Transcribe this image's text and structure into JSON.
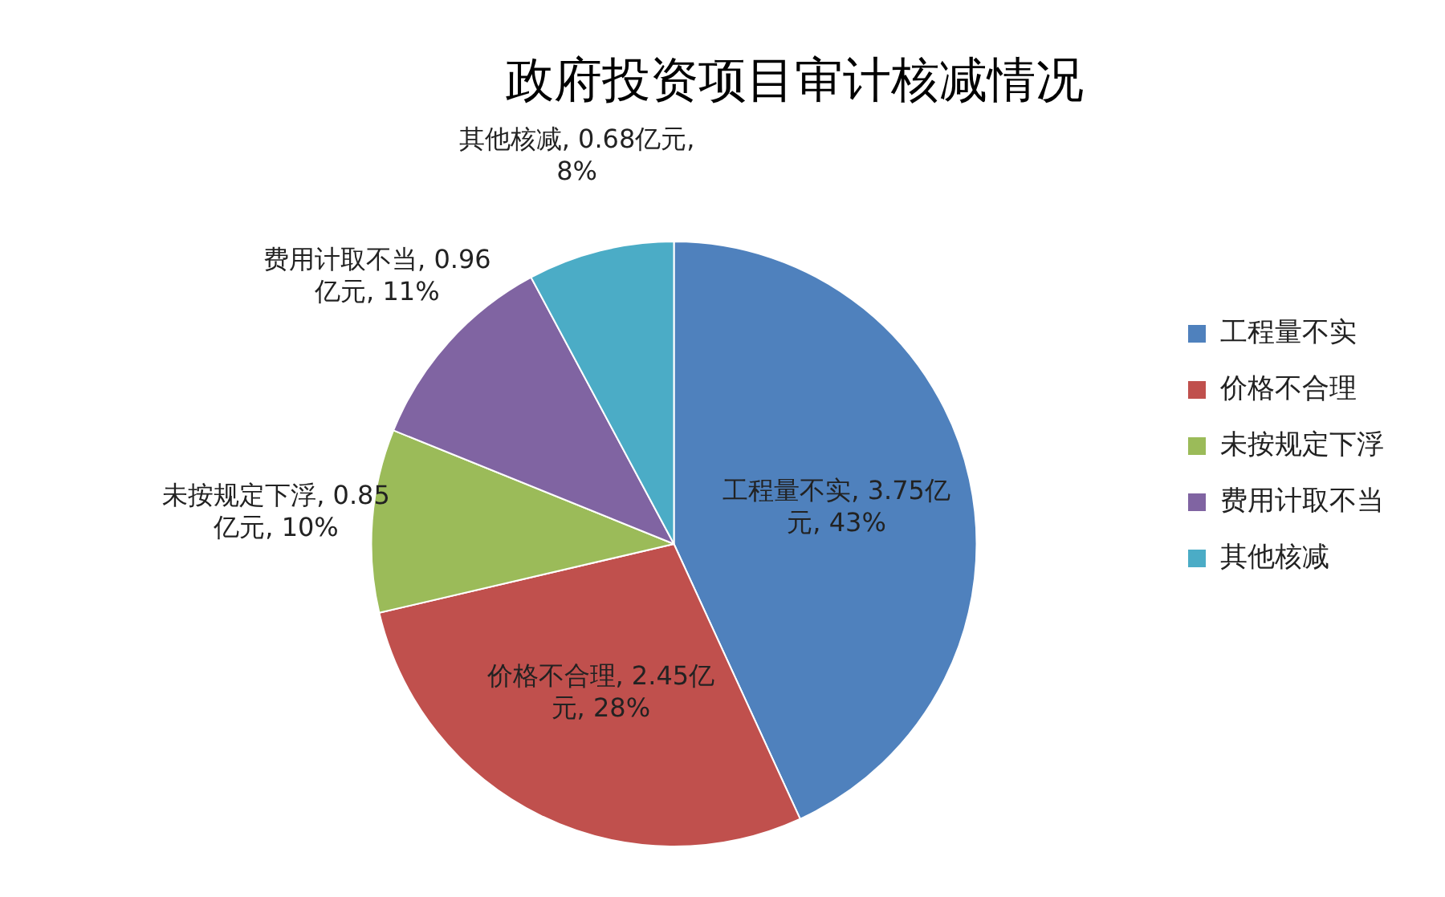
{
  "chart_data": {
    "type": "pie",
    "title": "政府投资项目审计核减情况",
    "categories": [
      "工程量不实",
      "价格不合理",
      "未按规定下浮",
      "费用计取不当",
      "其他核减"
    ],
    "values": [
      3.75,
      2.45,
      0.85,
      0.96,
      0.68
    ],
    "value_labels": [
      "工程量不实, 3.75亿元, 43%",
      "价格不合理, 2.45亿元, 28%",
      "未按规定下浮, 0.85亿元, 10%",
      "费用计取不当, 0.96亿元, 11%",
      "其他核减, 0.68亿元, 8%"
    ],
    "colors": [
      "#4f81bd",
      "#c0504d",
      "#9bbb59",
      "#8064a2",
      "#4bacc6"
    ],
    "legend": "right"
  }
}
